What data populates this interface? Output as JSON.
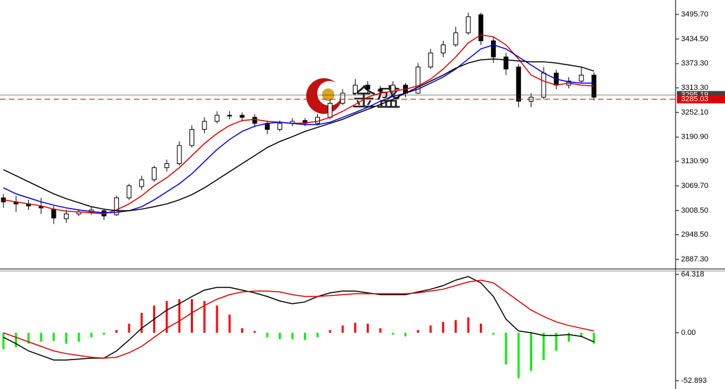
{
  "chart_data": [
    {
      "type": "candlestick",
      "watermark": "金盛",
      "ohlc": [
        [
          3040,
          3050,
          3015,
          3030
        ],
        [
          3030,
          3045,
          3005,
          3025
        ],
        [
          3025,
          3035,
          3010,
          3020
        ],
        [
          3018,
          3040,
          3000,
          3015
        ],
        [
          3012,
          3020,
          2975,
          2990
        ],
        [
          2988,
          3010,
          2978,
          3000
        ],
        [
          3000,
          3012,
          2995,
          3005
        ],
        [
          3005,
          3018,
          2998,
          3010
        ],
        [
          3008,
          3012,
          2985,
          2995
        ],
        [
          2998,
          3045,
          2995,
          3040
        ],
        [
          3040,
          3075,
          3035,
          3070
        ],
        [
          3068,
          3095,
          3060,
          3085
        ],
        [
          3085,
          3120,
          3080,
          3115
        ],
        [
          3115,
          3135,
          3105,
          3125
        ],
        [
          3125,
          3180,
          3120,
          3170
        ],
        [
          3170,
          3220,
          3165,
          3210
        ],
        [
          3210,
          3240,
          3200,
          3230
        ],
        [
          3230,
          3255,
          3225,
          3245
        ],
        [
          3245,
          3255,
          3235,
          3245
        ],
        [
          3245,
          3252,
          3230,
          3240
        ],
        [
          3240,
          3248,
          3215,
          3225
        ],
        [
          3225,
          3232,
          3198,
          3210
        ],
        [
          3210,
          3232,
          3205,
          3225
        ],
        [
          3225,
          3238,
          3218,
          3230
        ],
        [
          3232,
          3238,
          3218,
          3225
        ],
        [
          3225,
          3248,
          3220,
          3240
        ],
        [
          3240,
          3285,
          3235,
          3275
        ],
        [
          3275,
          3310,
          3270,
          3300
        ],
        [
          3300,
          3335,
          3295,
          3320
        ],
        [
          3320,
          3330,
          3300,
          3310
        ],
        [
          3310,
          3318,
          3295,
          3305
        ],
        [
          3305,
          3330,
          3300,
          3320
        ],
        [
          3320,
          3325,
          3290,
          3300
        ],
        [
          3300,
          3375,
          3298,
          3365
        ],
        [
          3365,
          3410,
          3360,
          3400
        ],
        [
          3400,
          3430,
          3390,
          3420
        ],
        [
          3420,
          3465,
          3415,
          3450
        ],
        [
          3450,
          3500,
          3445,
          3490
        ],
        [
          3495,
          3500,
          3420,
          3430
        ],
        [
          3430,
          3440,
          3375,
          3390
        ],
        [
          3390,
          3400,
          3345,
          3360
        ],
        [
          3365,
          3372,
          3265,
          3280
        ],
        [
          3280,
          3300,
          3265,
          3290
        ],
        [
          3290,
          3365,
          3285,
          3350
        ],
        [
          3350,
          3358,
          3310,
          3320
        ],
        [
          3320,
          3340,
          3312,
          3330
        ],
        [
          3330,
          3365,
          3325,
          3345
        ],
        [
          3345,
          3352,
          3282,
          3290
        ]
      ],
      "series": [
        {
          "color": "#e00000",
          "values": [
            3035,
            3030,
            3025,
            3020,
            3012,
            3007,
            3005,
            3003,
            3000,
            3010,
            3025,
            3045,
            3070,
            3090,
            3115,
            3145,
            3175,
            3200,
            3220,
            3232,
            3235,
            3230,
            3228,
            3225,
            3226,
            3230,
            3240,
            3255,
            3272,
            3290,
            3300,
            3305,
            3310,
            3318,
            3335,
            3360,
            3390,
            3425,
            3445,
            3440,
            3420,
            3385,
            3345,
            3330,
            3320,
            3325,
            3320,
            3318
          ]
        },
        {
          "color": "#0000e0",
          "values": [
            3065,
            3050,
            3040,
            3030,
            3022,
            3015,
            3010,
            3006,
            3003,
            3004,
            3008,
            3018,
            3035,
            3055,
            3075,
            3100,
            3130,
            3160,
            3185,
            3205,
            3218,
            3225,
            3228,
            3225,
            3222,
            3222,
            3228,
            3240,
            3252,
            3265,
            3280,
            3292,
            3300,
            3310,
            3325,
            3340,
            3360,
            3385,
            3410,
            3420,
            3410,
            3390,
            3370,
            3350,
            3335,
            3328,
            3325,
            3325
          ]
        },
        {
          "color": "#000000",
          "values": [
            3110,
            3095,
            3080,
            3065,
            3050,
            3038,
            3028,
            3018,
            3012,
            3008,
            3008,
            3012,
            3018,
            3025,
            3035,
            3048,
            3065,
            3085,
            3105,
            3125,
            3145,
            3165,
            3180,
            3192,
            3205,
            3215,
            3225,
            3235,
            3248,
            3260,
            3272,
            3285,
            3300,
            3315,
            3330,
            3345,
            3362,
            3375,
            3383,
            3385,
            3383,
            3380,
            3378,
            3378,
            3375,
            3370,
            3365,
            3355
          ]
        }
      ],
      "price_lines": [
        {
          "value": 3295.19,
          "label": "3295.19",
          "color": "#404040",
          "dashed": false
        },
        {
          "value": 3285.03,
          "label": "3285.03",
          "color": "#e00000",
          "dashed": true
        }
      ],
      "ylim": [
        2863.4,
        3531.5
      ],
      "yticks": [
        {
          "value": 3495.7,
          "label": "3495.70"
        },
        {
          "value": 3434.5,
          "label": "3434.50"
        },
        {
          "value": 3373.3,
          "label": "3373.30"
        },
        {
          "value": 3313.3,
          "label": "3313.30"
        },
        {
          "value": 3252.1,
          "label": "3252.10"
        },
        {
          "value": 3190.9,
          "label": "3190.90"
        },
        {
          "value": 3130.9,
          "label": "3130.90"
        },
        {
          "value": 3069.7,
          "label": "3069.70"
        },
        {
          "value": 3008.5,
          "label": "3008.50"
        },
        {
          "value": 2948.5,
          "label": "2948.50"
        },
        {
          "value": 2887.3,
          "label": "2887.30"
        }
      ]
    },
    {
      "type": "macd",
      "values": [
        -18,
        -16,
        -12,
        -10,
        -9,
        -12,
        -10,
        -5,
        -2,
        3,
        10,
        22,
        30,
        35,
        37,
        37,
        35,
        30,
        20,
        5,
        2,
        -5,
        -7,
        -7,
        -8,
        -5,
        3,
        8,
        11,
        10,
        5,
        -2,
        -4,
        3,
        8,
        12,
        14,
        17,
        10,
        -2,
        -35,
        -50,
        -42,
        -30,
        -20,
        -10,
        -5,
        -12
      ],
      "positive_color": "#ff0000",
      "negative_color": "#00ee00",
      "series": [
        {
          "color": "#000000",
          "values": [
            -5,
            -12,
            -20,
            -25,
            -30,
            -30,
            -29,
            -28,
            -28,
            -20,
            -8,
            5,
            15,
            25,
            32,
            40,
            47,
            50,
            50,
            47,
            44,
            40,
            35,
            32,
            34,
            40,
            44,
            46,
            46,
            44,
            42,
            42,
            42,
            45,
            48,
            52,
            58,
            62,
            55,
            40,
            15,
            2,
            0,
            -3,
            -3,
            -2,
            -4,
            -10
          ]
        },
        {
          "color": "#e00000",
          "values": [
            0,
            -5,
            -10,
            -15,
            -20,
            -23,
            -25,
            -27,
            -28,
            -27,
            -22,
            -15,
            -5,
            5,
            13,
            22,
            30,
            37,
            42,
            45,
            46,
            46,
            45,
            42,
            40,
            40,
            41,
            42,
            43,
            43,
            43,
            43,
            43,
            44,
            46,
            48,
            52,
            56,
            58,
            55,
            45,
            35,
            25,
            18,
            12,
            8,
            5,
            2
          ]
        }
      ],
      "ylim": [
        -56.7,
        68.85
      ],
      "yticks": [
        64.318,
        {
          "value": 0,
          "label": "0.00"
        },
        -52.893
      ]
    }
  ]
}
